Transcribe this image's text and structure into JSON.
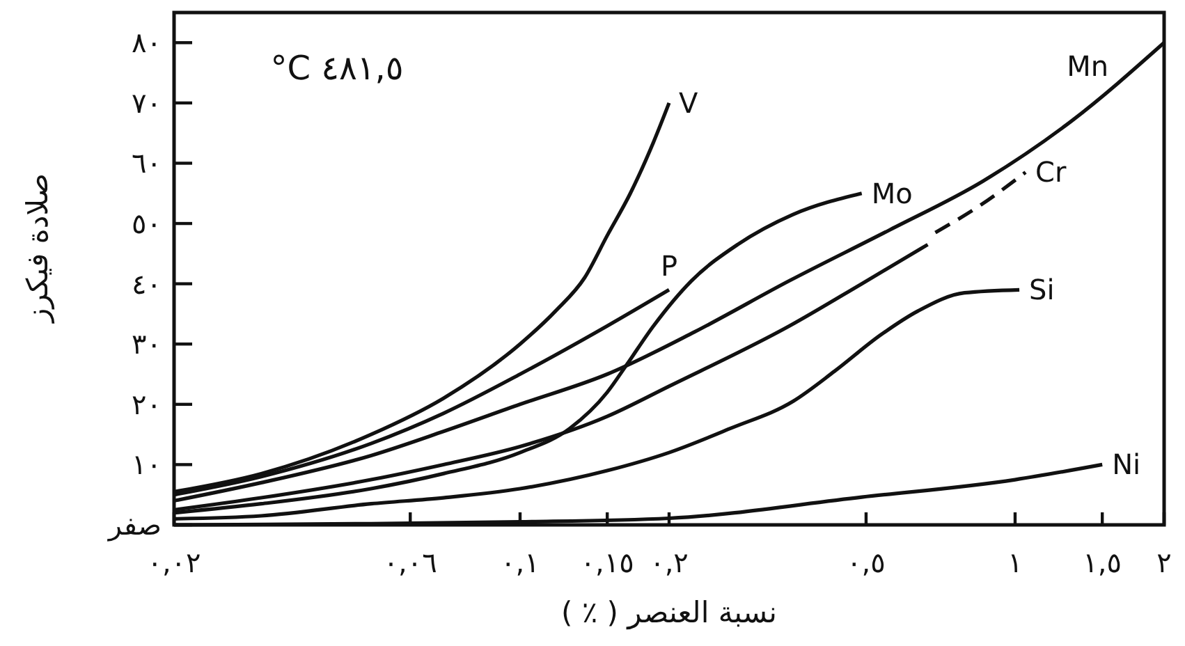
{
  "chart_data": {
    "type": "line",
    "xlabel": "نسبة العنصر ( ٪ )",
    "ylabel": "صلادة فيكرز",
    "annotations": [
      "°C ٤٨١,٥"
    ],
    "log": "x",
    "xlim": [
      0.02,
      2
    ],
    "ylim": [
      0,
      85
    ],
    "xticks": [
      {
        "value": 0.02,
        "label": "٠,٠٢"
      },
      {
        "value": 0.06,
        "label": "٠,٠٦"
      },
      {
        "value": 0.1,
        "label": "٠,١"
      },
      {
        "value": 0.15,
        "label": "٠,١٥"
      },
      {
        "value": 0.2,
        "label": "٠,٢"
      },
      {
        "value": 0.5,
        "label": "٠,٥"
      },
      {
        "value": 1,
        "label": "١"
      },
      {
        "value": 1.5,
        "label": "١,٥"
      },
      {
        "value": 2,
        "label": "٢"
      }
    ],
    "yticks": [
      {
        "value": 0,
        "label": "صفر"
      },
      {
        "value": 10,
        "label": "١٠"
      },
      {
        "value": 20,
        "label": "٢٠"
      },
      {
        "value": 30,
        "label": "٣٠"
      },
      {
        "value": 40,
        "label": "٤٠"
      },
      {
        "value": 50,
        "label": "٥٠"
      },
      {
        "value": 60,
        "label": "٦٠"
      },
      {
        "value": 70,
        "label": "٧٠"
      },
      {
        "value": 80,
        "label": "٨٠"
      }
    ],
    "series": [
      {
        "name": "V",
        "color": "#111111",
        "x": [
          0.02,
          0.03,
          0.05,
          0.07,
          0.1,
          0.118,
          0.135,
          0.15,
          0.167,
          0.186,
          0.2
        ],
        "values": [
          5.5,
          8.5,
          15,
          21,
          30,
          35.5,
          41,
          48,
          55,
          63.5,
          70
        ]
      },
      {
        "name": "P",
        "color": "#111111",
        "x": [
          0.02,
          0.03,
          0.05,
          0.07,
          0.1,
          0.15,
          0.2
        ],
        "values": [
          5,
          8,
          13.5,
          18.5,
          25,
          33,
          39
        ]
      },
      {
        "name": "Mo",
        "color": "#111111",
        "x": [
          0.02,
          0.03,
          0.05,
          0.07,
          0.1,
          0.126,
          0.15,
          0.164,
          0.186,
          0.222,
          0.275,
          0.356,
          0.49
        ],
        "values": [
          2,
          3.5,
          6,
          8.5,
          12,
          16,
          22,
          26.5,
          33,
          40.5,
          46.5,
          51.5,
          55
        ]
      },
      {
        "name": "Mn",
        "color": "#111111",
        "x": [
          0.02,
          0.03,
          0.05,
          0.07,
          0.1,
          0.15,
          0.225,
          0.35,
          0.56,
          0.86,
          1.3,
          2
        ],
        "values": [
          4,
          7,
          11.5,
          15.5,
          20,
          25,
          32,
          40.5,
          49,
          57,
          67,
          80
        ]
      },
      {
        "color": "#111111",
        "x": [
          0.02,
          0.03,
          0.05,
          0.07,
          0.1,
          0.15,
          0.2,
          0.35,
          0.49,
          0.666
        ],
        "values": [
          2.5,
          4.5,
          7.5,
          10,
          13,
          18,
          23,
          33,
          40,
          46.5
        ]
      },
      {
        "name": "Cr",
        "color": "#111111",
        "line_style": "dashed",
        "x": [
          0.69,
          0.85,
          1.05
        ],
        "values": [
          48.5,
          53,
          58.5
        ]
      },
      {
        "name": "Si",
        "color": "#111111",
        "x": [
          0.02,
          0.03,
          0.05,
          0.07,
          0.1,
          0.15,
          0.2,
          0.266,
          0.356,
          0.432,
          0.535,
          0.637,
          0.79,
          1.02
        ],
        "values": [
          1,
          1.5,
          3.5,
          4.5,
          6,
          9,
          12,
          16,
          20.5,
          25.5,
          31.5,
          35.5,
          38.5,
          39
        ]
      },
      {
        "name": "Ni",
        "color": "#111111",
        "x": [
          0.02,
          0.05,
          0.1,
          0.2,
          0.49,
          1,
          1.5
        ],
        "values": [
          0,
          0.2,
          0.5,
          1.1,
          4.6,
          7.5,
          10
        ]
      }
    ]
  }
}
